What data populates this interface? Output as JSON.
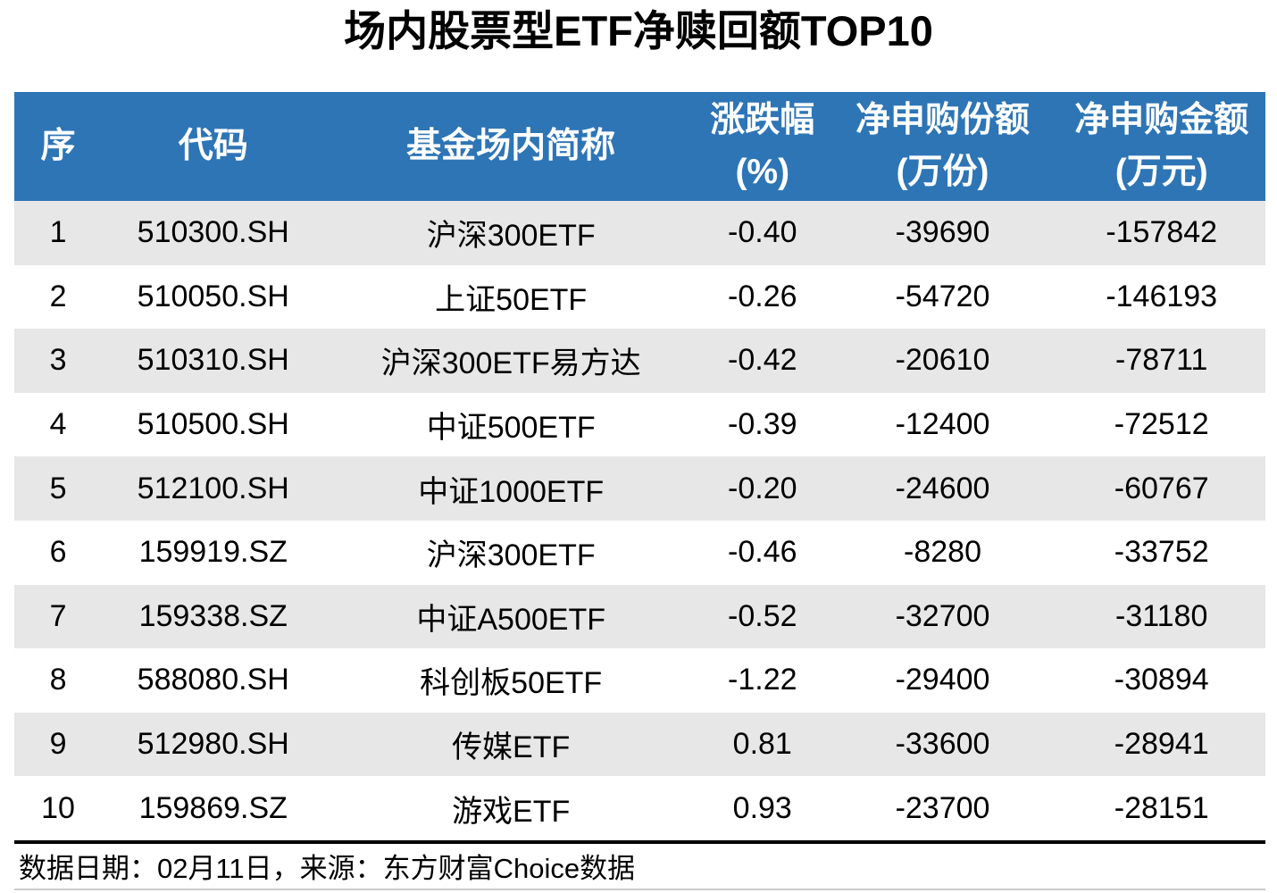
{
  "page": {
    "title": "场内股票型ETF净赎回额TOP10",
    "footer": "数据日期：02月11日，来源：东方财富Choice数据"
  },
  "colors": {
    "header_bg": "#2E75B6",
    "header_text": "#FFFFFF",
    "row_alt_bg": "#E8E7E7",
    "row_bg": "#FFFFFF",
    "divider": "#000000",
    "bottom_rule": "#CBCBCB"
  },
  "table": {
    "columns": [
      {
        "line1": "序",
        "line2": ""
      },
      {
        "line1": "代码",
        "line2": ""
      },
      {
        "line1": "基金场内简称",
        "line2": ""
      },
      {
        "line1": "涨跌幅",
        "line2": "(%)"
      },
      {
        "line1": "净申购份额",
        "line2": "(万份)"
      },
      {
        "line1": "净申购金额",
        "line2": "(万元)"
      }
    ],
    "rows": [
      [
        "1",
        "510300.SH",
        "沪深300ETF",
        "-0.40",
        "-39690",
        "-157842"
      ],
      [
        "2",
        "510050.SH",
        "上证50ETF",
        "-0.26",
        "-54720",
        "-146193"
      ],
      [
        "3",
        "510310.SH",
        "沪深300ETF易方达",
        "-0.42",
        "-20610",
        "-78711"
      ],
      [
        "4",
        "510500.SH",
        "中证500ETF",
        "-0.39",
        "-12400",
        "-72512"
      ],
      [
        "5",
        "512100.SH",
        "中证1000ETF",
        "-0.20",
        "-24600",
        "-60767"
      ],
      [
        "6",
        "159919.SZ",
        "沪深300ETF",
        "-0.46",
        "-8280",
        "-33752"
      ],
      [
        "7",
        "159338.SZ",
        "中证A500ETF",
        "-0.52",
        "-32700",
        "-31180"
      ],
      [
        "8",
        "588080.SH",
        "科创板50ETF",
        "-1.22",
        "-29400",
        "-30894"
      ],
      [
        "9",
        "512980.SH",
        "传媒ETF",
        "0.81",
        "-33600",
        "-28941"
      ],
      [
        "10",
        "159869.SZ",
        "游戏ETF",
        "0.93",
        "-23700",
        "-28151"
      ]
    ]
  },
  "chart_data": {
    "type": "table",
    "title": "场内股票型ETF净赎回额TOP10",
    "columns": [
      "序",
      "代码",
      "基金场内简称",
      "涨跌幅(%)",
      "净申购份额(万份)",
      "净申购金额(万元)"
    ],
    "rows": [
      [
        1,
        "510300.SH",
        "沪深300ETF",
        -0.4,
        -39690,
        -157842
      ],
      [
        2,
        "510050.SH",
        "上证50ETF",
        -0.26,
        -54720,
        -146193
      ],
      [
        3,
        "510310.SH",
        "沪深300ETF易方达",
        -0.42,
        -20610,
        -78711
      ],
      [
        4,
        "510500.SH",
        "中证500ETF",
        -0.39,
        -12400,
        -72512
      ],
      [
        5,
        "512100.SH",
        "中证1000ETF",
        -0.2,
        -24600,
        -60767
      ],
      [
        6,
        "159919.SZ",
        "沪深300ETF",
        -0.46,
        -8280,
        -33752
      ],
      [
        7,
        "159338.SZ",
        "中证A500ETF",
        -0.52,
        -32700,
        -31180
      ],
      [
        8,
        "588080.SH",
        "科创板50ETF",
        -1.22,
        -29400,
        -30894
      ],
      [
        9,
        "512980.SH",
        "传媒ETF",
        0.81,
        -33600,
        -28941
      ],
      [
        10,
        "159869.SZ",
        "游戏ETF",
        0.93,
        -23700,
        -28151
      ]
    ],
    "source_note": "数据日期：02月11日，来源：东方财富Choice数据"
  }
}
